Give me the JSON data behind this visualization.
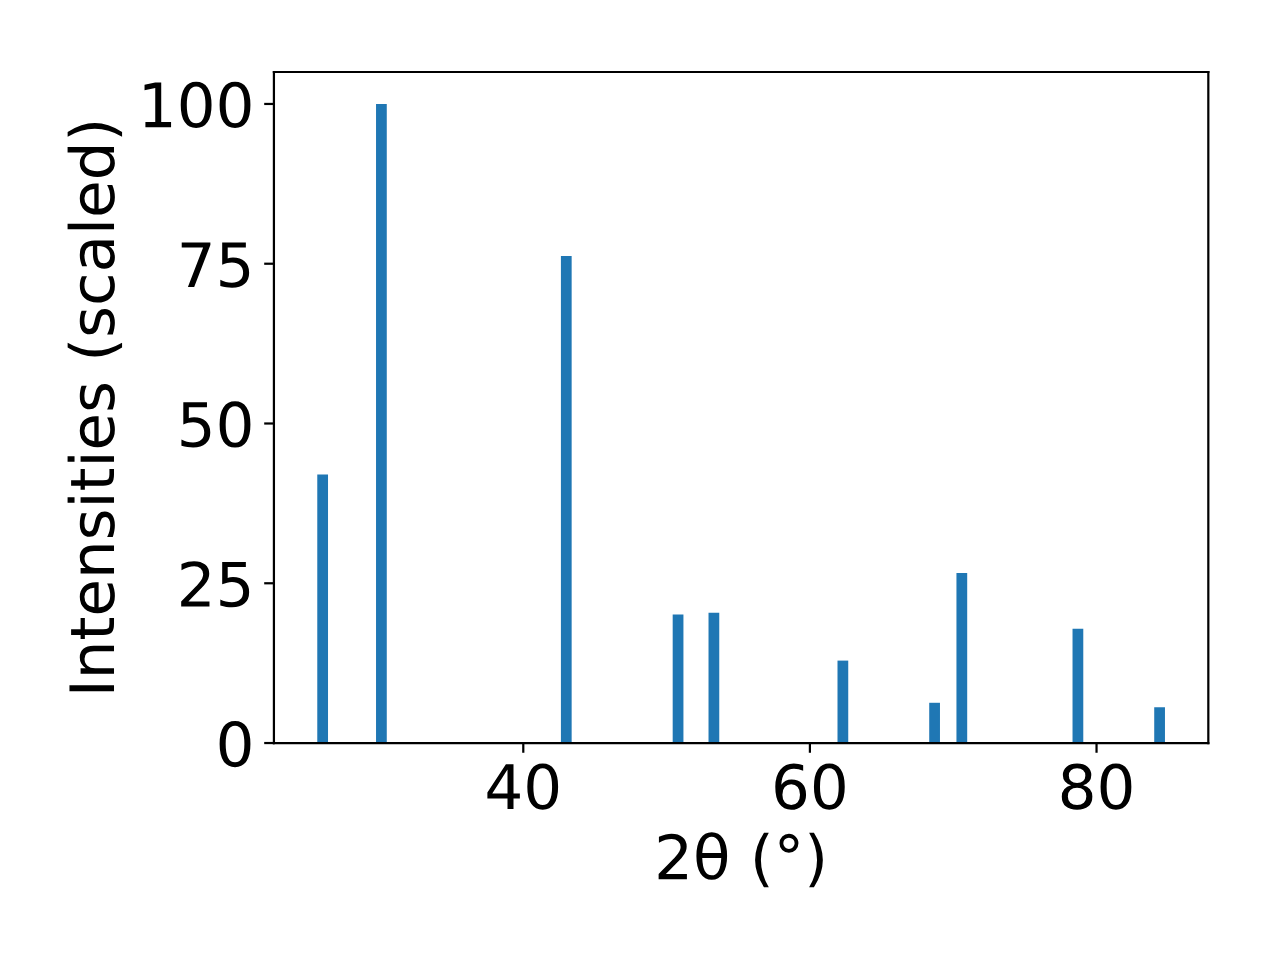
{
  "chart_data": {
    "type": "bar",
    "xlabel": "2θ (°)",
    "ylabel": "Intensities (scaled)",
    "x": [
      26.0,
      30.1,
      43.0,
      50.8,
      53.3,
      62.3,
      68.7,
      70.6,
      78.7,
      84.4
    ],
    "values": [
      42.0,
      100,
      76.2,
      20.1,
      20.4,
      12.9,
      6.3,
      26.6,
      17.9,
      5.6
    ],
    "color": "#1f77b4",
    "xlim": [
      22.6,
      87.8
    ],
    "xticks": [
      40,
      60,
      80
    ],
    "ylim": [
      0,
      105
    ],
    "yticks": [
      0,
      25,
      50,
      75,
      100
    ],
    "grid": false
  }
}
